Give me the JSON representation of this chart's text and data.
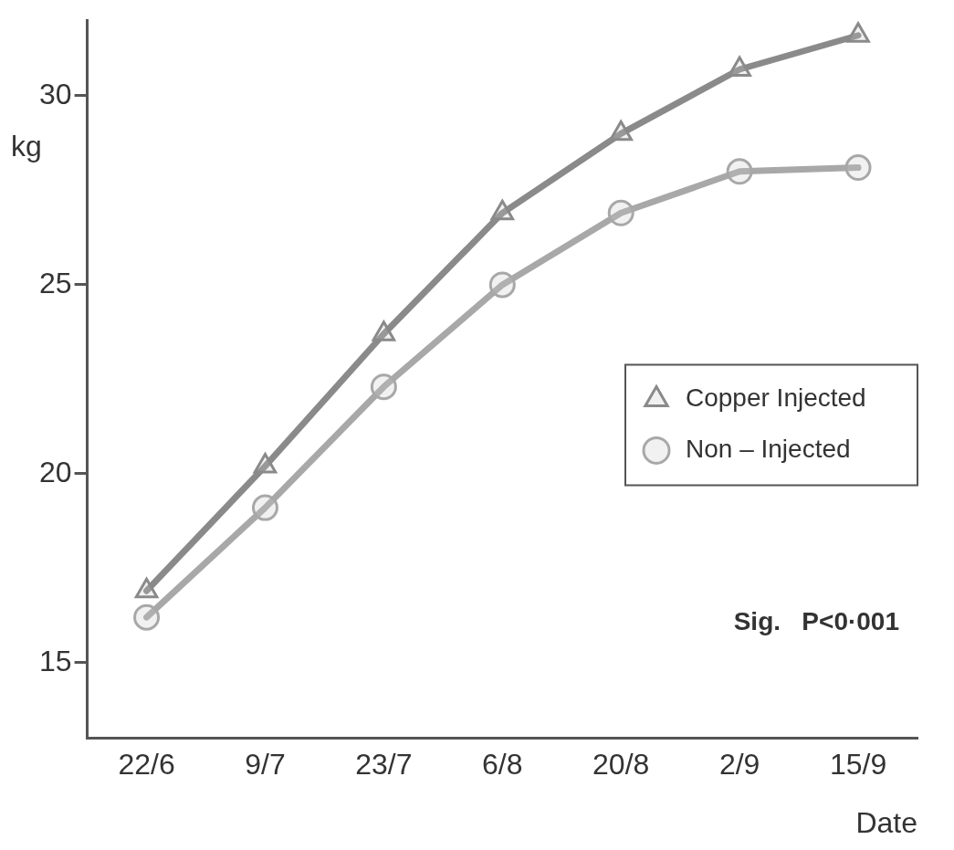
{
  "chart_data": {
    "type": "line",
    "xlabel": "Date",
    "ylabel": "kg",
    "categories": [
      "22/6",
      "9/7",
      "23/7",
      "6/8",
      "20/8",
      "2/9",
      "15/9"
    ],
    "series": [
      {
        "name": "Copper Injected",
        "color": "#8a8a8a",
        "marker": "triangle",
        "values": [
          16.9,
          20.2,
          23.7,
          26.9,
          29.0,
          30.7,
          31.6
        ]
      },
      {
        "name": "Non – Injected",
        "color": "#a8a8a8",
        "marker": "circle",
        "values": [
          16.2,
          19.1,
          22.3,
          25.0,
          26.9,
          28.0,
          28.1
        ]
      }
    ],
    "ylim": [
      13,
      32
    ],
    "yticks": [
      15,
      20,
      25,
      30
    ],
    "grid": false,
    "legend": "right",
    "line_style": "solid",
    "annotations": [
      "Sig.   P<0·001"
    ]
  }
}
